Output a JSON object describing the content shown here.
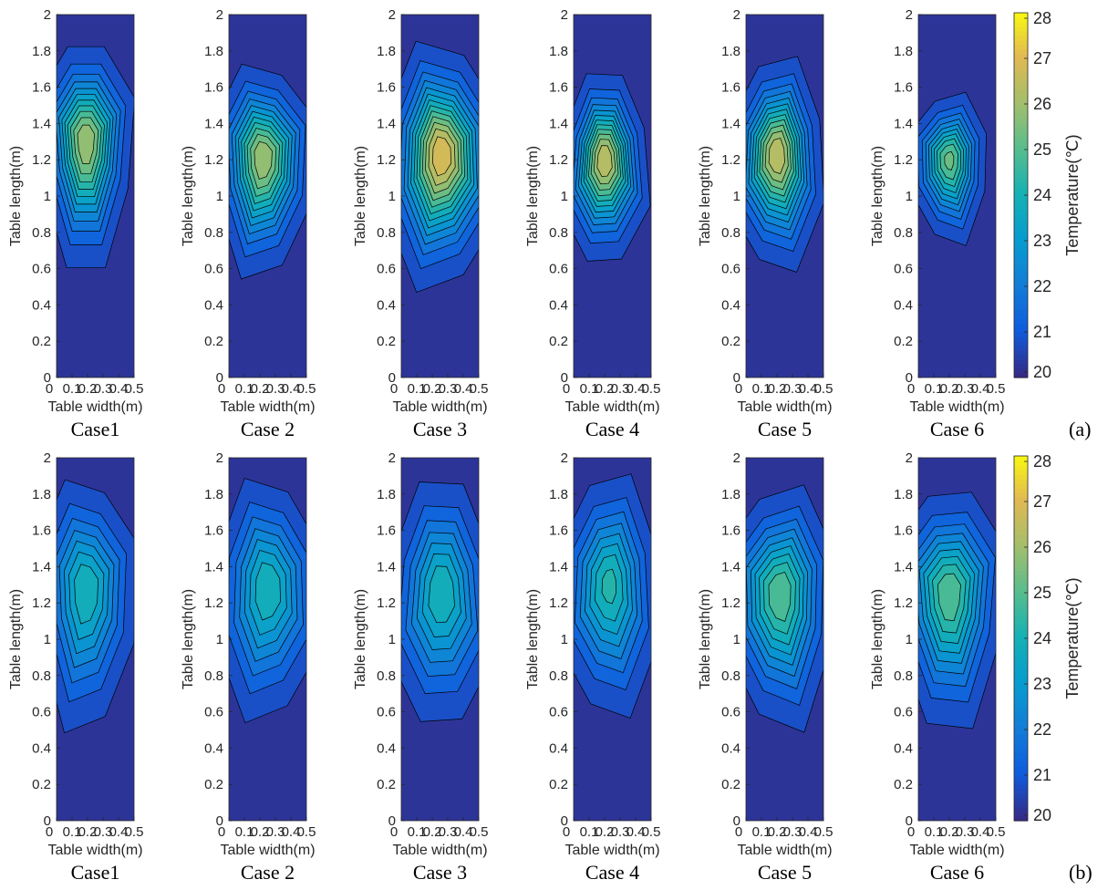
{
  "chart_data": {
    "type": "heatmap",
    "subtype": "filled-contour",
    "xlabel": "Table width(m)",
    "ylabel": "Table length(m)",
    "xlim": [
      0,
      0.5
    ],
    "ylim": [
      0,
      2
    ],
    "x_ticks": [
      "0",
      "0.1",
      "0.2",
      "0.3",
      "0.4",
      "0.5"
    ],
    "y_ticks": [
      "0",
      "0.2",
      "0.4",
      "0.6",
      "0.8",
      "1",
      "1.2",
      "1.4",
      "1.6",
      "1.8",
      "2"
    ],
    "colorbar": {
      "label": "Temperature(℃)",
      "range": [
        20,
        28
      ],
      "ticks": [
        "20",
        "21",
        "22",
        "23",
        "24",
        "25",
        "26",
        "27",
        "28"
      ],
      "colormap": "parula"
    },
    "rows": [
      {
        "tag": "(a)",
        "panels": [
          {
            "case": "Case1",
            "peak": {
              "x": 0.19,
              "y": 1.3,
              "t": 26
            },
            "spread": {
              "x": 0.13,
              "y": 0.24
            }
          },
          {
            "case": "Case 2",
            "peak": {
              "x": 0.22,
              "y": 1.21,
              "t": 26
            },
            "spread": {
              "x": 0.14,
              "y": 0.22
            }
          },
          {
            "case": "Case 3",
            "peak": {
              "x": 0.26,
              "y": 1.23,
              "t": 27
            },
            "spread": {
              "x": 0.16,
              "y": 0.25
            }
          },
          {
            "case": "Case 4",
            "peak": {
              "x": 0.2,
              "y": 1.2,
              "t": 26.5
            },
            "spread": {
              "x": 0.12,
              "y": 0.2
            }
          },
          {
            "case": "Case 5",
            "peak": {
              "x": 0.2,
              "y": 1.23,
              "t": 26.5
            },
            "spread": {
              "x": 0.13,
              "y": 0.22
            }
          },
          {
            "case": "Case 6",
            "peak": {
              "x": 0.2,
              "y": 1.2,
              "t": 25.2
            },
            "spread": {
              "x": 0.11,
              "y": 0.16
            }
          }
        ]
      },
      {
        "tag": "(b)",
        "panels": [
          {
            "case": "Case1",
            "peak": {
              "x": 0.19,
              "y": 1.27,
              "t": 24
            },
            "spread": {
              "x": 0.15,
              "y": 0.28
            }
          },
          {
            "case": "Case 2",
            "peak": {
              "x": 0.25,
              "y": 1.28,
              "t": 24
            },
            "spread": {
              "x": 0.16,
              "y": 0.27
            }
          },
          {
            "case": "Case 3",
            "peak": {
              "x": 0.26,
              "y": 1.26,
              "t": 24
            },
            "spread": {
              "x": 0.16,
              "y": 0.28
            }
          },
          {
            "case": "Case 4",
            "peak": {
              "x": 0.23,
              "y": 1.3,
              "t": 24.2
            },
            "spread": {
              "x": 0.15,
              "y": 0.27
            }
          },
          {
            "case": "Case 5",
            "peak": {
              "x": 0.22,
              "y": 1.25,
              "t": 25
            },
            "spread": {
              "x": 0.16,
              "y": 0.26
            }
          },
          {
            "case": "Case 6",
            "peak": {
              "x": 0.2,
              "y": 1.25,
              "t": 25
            },
            "spread": {
              "x": 0.16,
              "y": 0.26
            }
          }
        ]
      }
    ],
    "background_t": 20.2
  }
}
